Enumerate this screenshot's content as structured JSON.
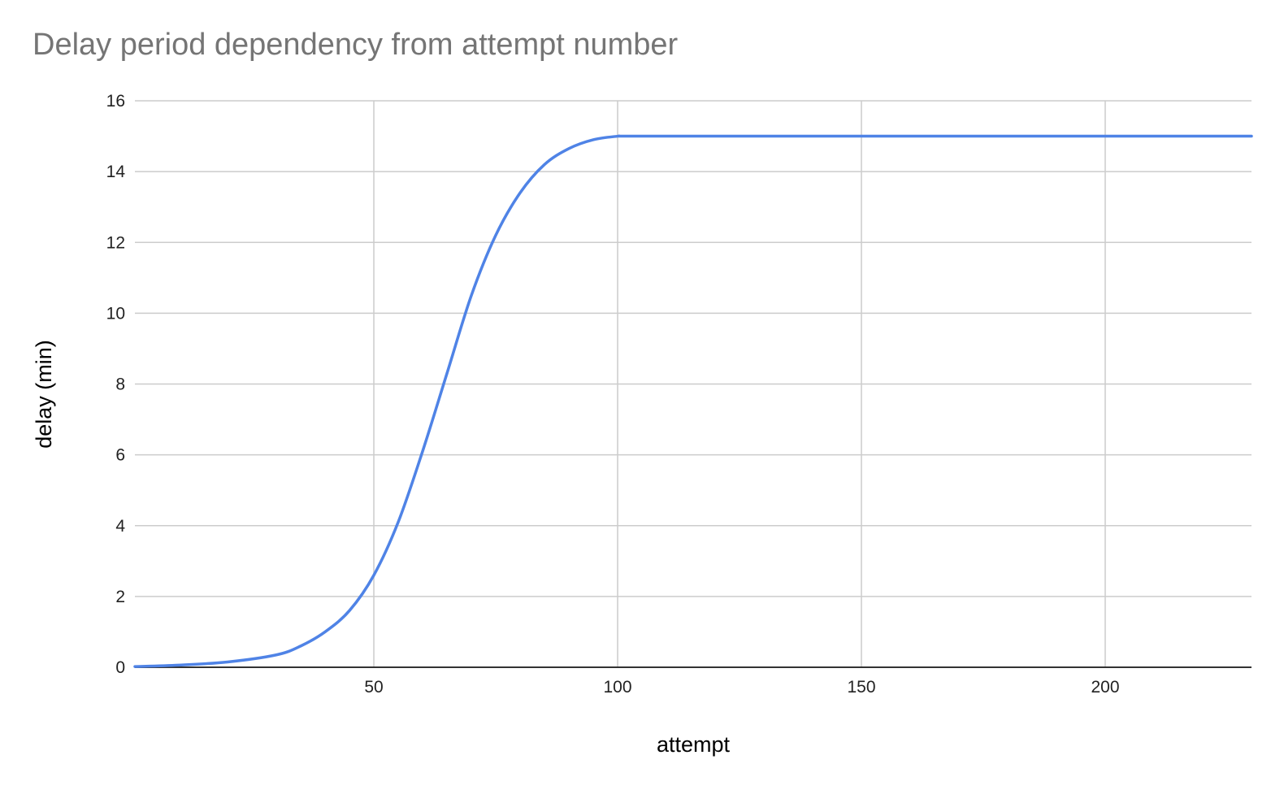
{
  "chart_data": {
    "type": "line",
    "title": "Delay period dependency from attempt number",
    "xlabel": "attempt",
    "ylabel": "delay (min)",
    "xlim": [
      1,
      230
    ],
    "ylim": [
      0,
      16
    ],
    "x_ticks": [
      50,
      100,
      150,
      200
    ],
    "y_ticks": [
      0,
      2,
      4,
      6,
      8,
      10,
      12,
      14,
      16
    ],
    "grid": true,
    "legend": "none",
    "line_color": "#4f83e6",
    "series": [
      {
        "x": [
          1,
          10,
          20,
          30,
          35,
          40,
          45,
          50,
          55,
          60,
          65,
          70,
          75,
          80,
          85,
          90,
          95,
          100,
          101,
          110,
          120,
          150,
          200,
          230
        ],
        "values": [
          0.02,
          0.06,
          0.15,
          0.35,
          0.6,
          1.0,
          1.6,
          2.6,
          4.1,
          6.1,
          8.3,
          10.5,
          12.2,
          13.4,
          14.2,
          14.65,
          14.9,
          15.0,
          15.0,
          15.0,
          15.0,
          15.0,
          15.0,
          15.0
        ]
      }
    ]
  }
}
